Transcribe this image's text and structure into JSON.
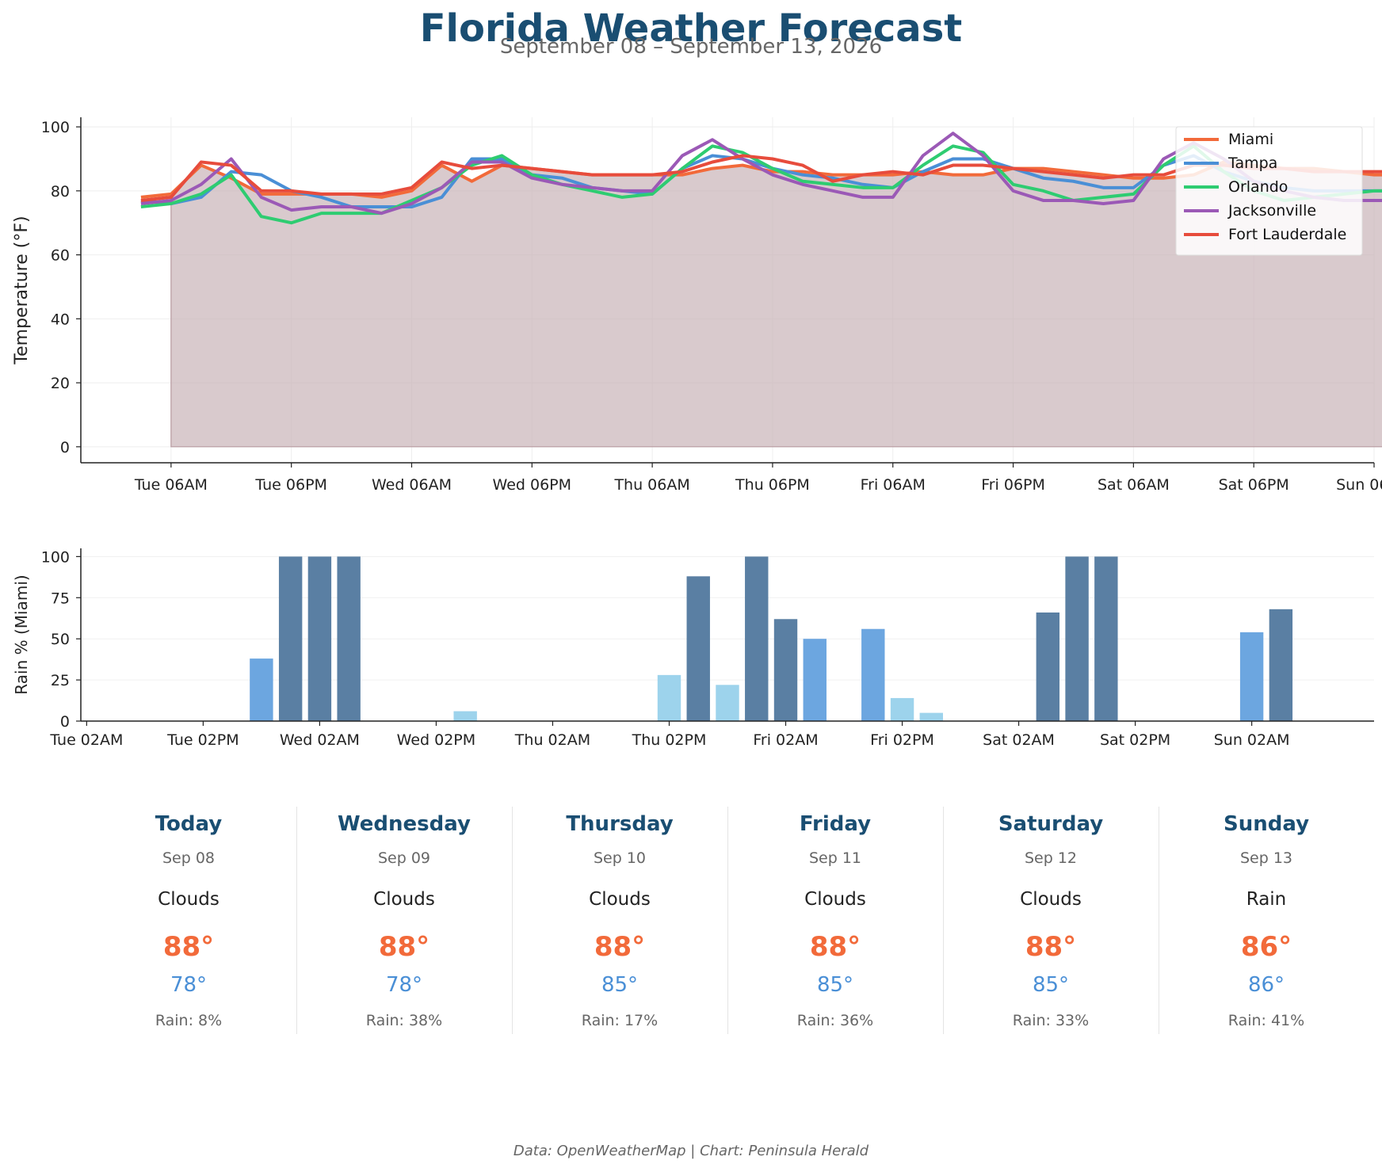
{
  "header": {
    "title": "Florida Weather Forecast",
    "subtitle": "September 08 – September 13, 2026"
  },
  "footer": {
    "text": "Data: OpenWeatherMap | Chart: Peninsula Herald"
  },
  "chart_data": [
    {
      "type": "line",
      "ylabel": "Temperature (°F)",
      "ylim": [
        -5,
        103
      ],
      "xlim": [
        -3,
        40
      ],
      "yticks": [
        0,
        20,
        40,
        60,
        80,
        100
      ],
      "xtick_labels": [
        {
          "x": 0,
          "label": "Tue 06AM"
        },
        {
          "x": 4,
          "label": "Tue 06PM"
        },
        {
          "x": 8,
          "label": "Wed 06AM"
        },
        {
          "x": 12,
          "label": "Wed 06PM"
        },
        {
          "x": 16,
          "label": "Thu 06AM"
        },
        {
          "x": 20,
          "label": "Thu 06PM"
        },
        {
          "x": 24,
          "label": "Fri 06AM"
        },
        {
          "x": 28,
          "label": "Fri 06PM"
        },
        {
          "x": 32,
          "label": "Sat 06AM"
        },
        {
          "x": 36,
          "label": "Sat 06PM"
        },
        {
          "x": 40,
          "label": "Sun 06AM"
        }
      ],
      "legend": "top-right",
      "grid": true,
      "x_step_hours": 3,
      "x_start": -1,
      "fill_under": "Miami",
      "series": [
        {
          "name": "Miami",
          "color": "#f26a3a",
          "values": [
            78,
            79,
            88,
            84,
            79,
            79,
            79,
            79,
            78,
            80,
            88,
            83,
            88,
            87,
            86,
            85,
            85,
            85,
            85,
            87,
            88,
            86,
            86,
            85,
            85,
            85,
            86,
            85,
            85,
            87,
            87,
            86,
            85,
            84,
            84,
            85,
            89,
            88,
            87,
            87,
            86,
            85,
            85
          ]
        },
        {
          "name": "Tampa",
          "color": "#4a8fd6",
          "values": [
            77,
            76,
            78,
            86,
            85,
            80,
            78,
            75,
            75,
            75,
            78,
            90,
            90,
            85,
            84,
            81,
            80,
            79,
            87,
            91,
            90,
            87,
            85,
            84,
            82,
            81,
            86,
            90,
            90,
            87,
            84,
            83,
            81,
            81,
            88,
            91,
            86,
            83,
            81,
            80,
            80,
            80,
            80
          ]
        },
        {
          "name": "Orlando",
          "color": "#2ecc71",
          "values": [
            75,
            76,
            79,
            85,
            72,
            70,
            73,
            73,
            73,
            77,
            81,
            88,
            91,
            85,
            82,
            80,
            78,
            79,
            87,
            94,
            92,
            87,
            83,
            82,
            81,
            81,
            88,
            94,
            92,
            82,
            80,
            77,
            78,
            79,
            88,
            94,
            86,
            80,
            77,
            78,
            79,
            80,
            80
          ]
        },
        {
          "name": "Jacksonville",
          "color": "#9b59b6",
          "values": [
            76,
            77,
            82,
            90,
            78,
            74,
            75,
            75,
            73,
            76,
            81,
            89,
            89,
            84,
            82,
            81,
            80,
            80,
            91,
            96,
            90,
            85,
            82,
            80,
            78,
            78,
            91,
            98,
            91,
            80,
            77,
            77,
            76,
            77,
            90,
            95,
            90,
            83,
            80,
            78,
            77,
            77,
            77
          ]
        },
        {
          "name": "Fort Lauderdale",
          "color": "#e74c3c",
          "values": [
            77,
            78,
            89,
            88,
            80,
            80,
            79,
            79,
            79,
            81,
            89,
            87,
            88,
            87,
            86,
            85,
            85,
            85,
            86,
            89,
            91,
            90,
            88,
            83,
            85,
            86,
            85,
            88,
            88,
            87,
            86,
            85,
            84,
            85,
            85,
            88,
            88,
            87,
            87,
            86,
            86,
            86,
            86
          ]
        }
      ]
    },
    {
      "type": "bar",
      "ylabel": "Rain % (Miami)",
      "ylim": [
        0,
        105
      ],
      "xlim": [
        -0.2,
        44.2
      ],
      "yticks": [
        0,
        25,
        50,
        75,
        100
      ],
      "xtick_labels": [
        {
          "x": 0,
          "label": "Tue 02AM"
        },
        {
          "x": 4,
          "label": "Tue 02PM"
        },
        {
          "x": 8,
          "label": "Wed 02AM"
        },
        {
          "x": 12,
          "label": "Wed 02PM"
        },
        {
          "x": 16,
          "label": "Thu 02AM"
        },
        {
          "x": 20,
          "label": "Thu 02PM"
        },
        {
          "x": 24,
          "label": "Fri 02AM"
        },
        {
          "x": 28,
          "label": "Fri 02PM"
        },
        {
          "x": 32,
          "label": "Sat 02AM"
        },
        {
          "x": 36,
          "label": "Sat 02PM"
        },
        {
          "x": 40,
          "label": "Sun 02AM"
        }
      ],
      "color_scale": {
        "light": "#9dd3ec",
        "medium": "#6ca6e0",
        "heavy": "#5a7fa3"
      },
      "bars": [
        {
          "x": 6,
          "value": 38
        },
        {
          "x": 7,
          "value": 100
        },
        {
          "x": 8,
          "value": 100
        },
        {
          "x": 9,
          "value": 100
        },
        {
          "x": 13,
          "value": 6
        },
        {
          "x": 20,
          "value": 28
        },
        {
          "x": 21,
          "value": 88
        },
        {
          "x": 22,
          "value": 22
        },
        {
          "x": 23,
          "value": 100
        },
        {
          "x": 24,
          "value": 62
        },
        {
          "x": 25,
          "value": 50
        },
        {
          "x": 27,
          "value": 56
        },
        {
          "x": 28,
          "value": 14
        },
        {
          "x": 29,
          "value": 5
        },
        {
          "x": 33,
          "value": 66
        },
        {
          "x": 34,
          "value": 100
        },
        {
          "x": 35,
          "value": 100
        },
        {
          "x": 40,
          "value": 54
        },
        {
          "x": 41,
          "value": 68
        }
      ]
    }
  ],
  "forecast": [
    {
      "day": "Today",
      "date": "Sep 08",
      "condition": "Clouds",
      "high": "88°",
      "low": "78°",
      "rain": "Rain: 8%"
    },
    {
      "day": "Wednesday",
      "date": "Sep 09",
      "condition": "Clouds",
      "high": "88°",
      "low": "78°",
      "rain": "Rain: 38%"
    },
    {
      "day": "Thursday",
      "date": "Sep 10",
      "condition": "Clouds",
      "high": "88°",
      "low": "85°",
      "rain": "Rain: 17%"
    },
    {
      "day": "Friday",
      "date": "Sep 11",
      "condition": "Clouds",
      "high": "88°",
      "low": "85°",
      "rain": "Rain: 36%"
    },
    {
      "day": "Saturday",
      "date": "Sep 12",
      "condition": "Clouds",
      "high": "88°",
      "low": "85°",
      "rain": "Rain: 33%"
    },
    {
      "day": "Sunday",
      "date": "Sep 13",
      "condition": "Rain",
      "high": "86°",
      "low": "86°",
      "rain": "Rain: 41%"
    }
  ]
}
